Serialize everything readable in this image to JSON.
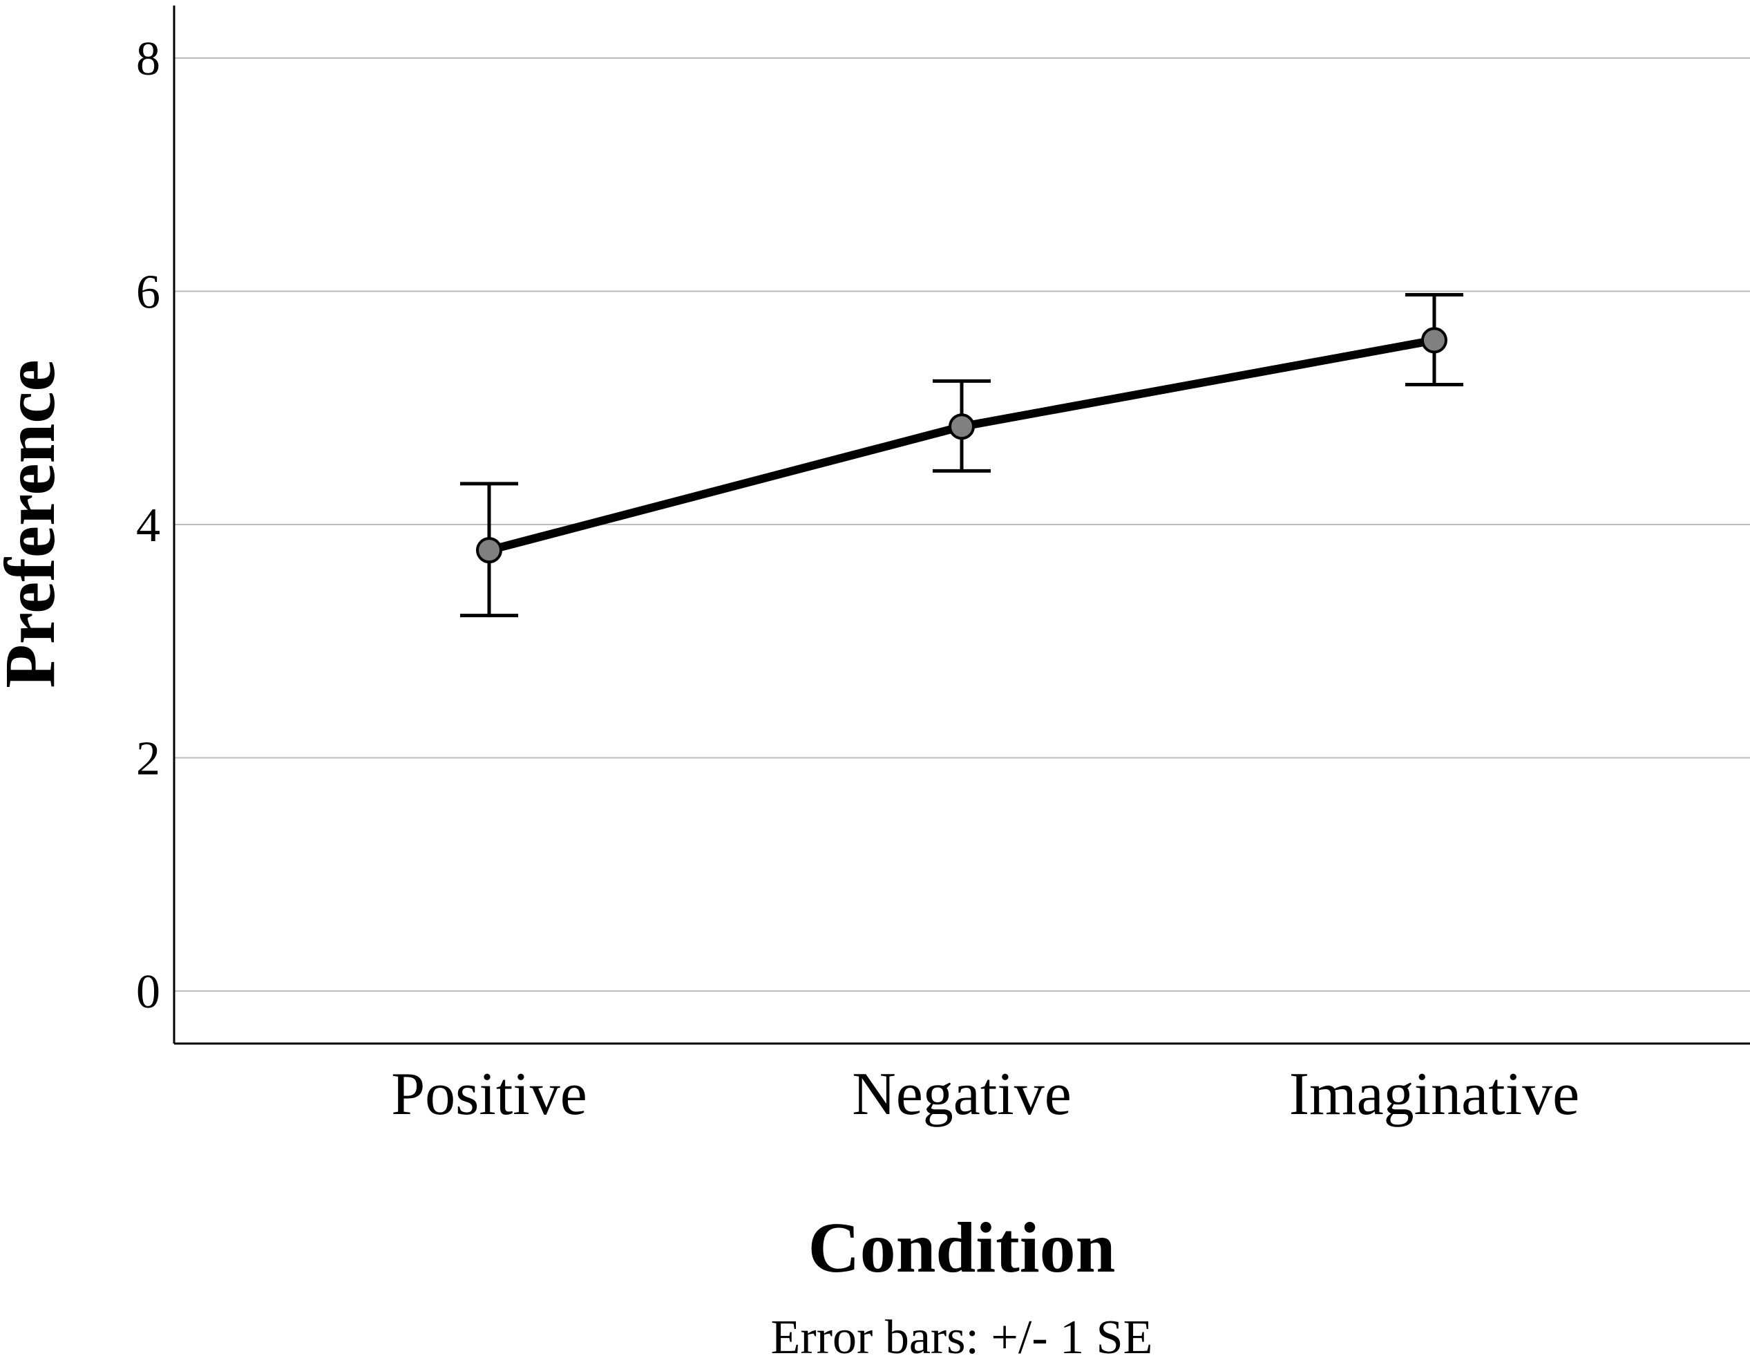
{
  "chart_data": {
    "type": "line",
    "title": "",
    "xlabel": "Condition",
    "ylabel": "Preference",
    "footnote": "Error bars: +/- 1 SE",
    "categories": [
      "Positive",
      "Negative",
      "Imaginative"
    ],
    "series": [
      {
        "name": "Preference",
        "values": [
          3.78,
          4.84,
          5.58
        ],
        "error_low": [
          3.22,
          4.46,
          5.2
        ],
        "error_high": [
          4.35,
          5.23,
          5.97
        ]
      }
    ],
    "ylim": [
      -0.45,
      8.45
    ],
    "yticks": [
      "0",
      "2",
      "4",
      "6",
      "8"
    ],
    "grid": true,
    "colors": {
      "line": "#000000",
      "marker_fill": "#808080",
      "grid": "#bbbbbb",
      "axis": "#000000"
    }
  }
}
